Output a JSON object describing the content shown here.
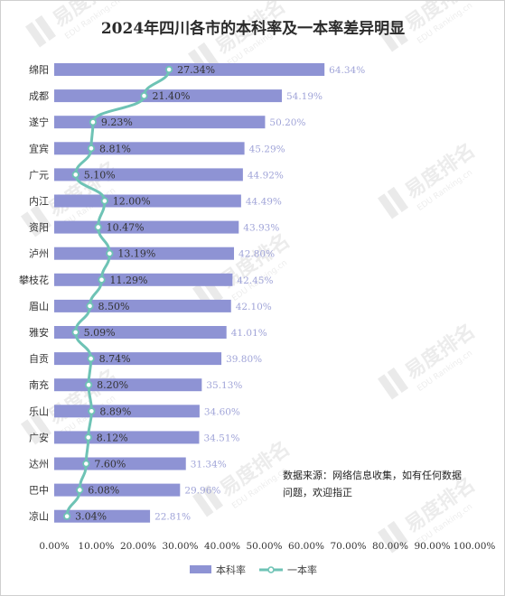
{
  "chart_data": {
    "type": "bar",
    "title": "2024年四川各市的本科率及一本率差异明显",
    "categories": [
      "绵阳",
      "成都",
      "遂宁",
      "宜宾",
      "广元",
      "内江",
      "资阳",
      "泸州",
      "攀枝花",
      "眉山",
      "雅安",
      "自贡",
      "南充",
      "乐山",
      "广安",
      "达州",
      "巴中",
      "凉山"
    ],
    "series": [
      {
        "name": "本科率",
        "type": "bar",
        "values": [
          64.34,
          54.19,
          50.2,
          45.29,
          44.92,
          44.49,
          43.93,
          42.8,
          42.45,
          42.1,
          41.01,
          39.8,
          35.13,
          34.6,
          34.51,
          31.34,
          29.96,
          22.81
        ],
        "labels": [
          "64.34%",
          "54.19%",
          "50.20%",
          "45.29%",
          "44.92%",
          "44.49%",
          "43.93%",
          "42.80%",
          "42.45%",
          "42.10%",
          "41.01%",
          "39.80%",
          "35.13%",
          "34.60%",
          "34.51%",
          "31.34%",
          "29.96%",
          "22.81%"
        ]
      },
      {
        "name": "一本率",
        "type": "line",
        "values": [
          27.34,
          21.4,
          9.23,
          8.81,
          5.1,
          12.0,
          10.47,
          13.19,
          11.29,
          8.5,
          5.09,
          8.74,
          8.2,
          8.89,
          8.12,
          7.6,
          6.08,
          3.04
        ],
        "labels": [
          "27.34%",
          "21.40%",
          "9.23%",
          "8.81%",
          "5.10%",
          "12.00%",
          "10.47%",
          "13.19%",
          "11.29%",
          "8.50%",
          "5.09%",
          "8.74%",
          "8.20%",
          "8.89%",
          "8.12%",
          "7.60%",
          "6.08%",
          "3.04%"
        ]
      }
    ],
    "xlim": [
      0,
      100
    ],
    "xticks": [
      "0.00%",
      "10.00%",
      "20.00%",
      "30.00%",
      "40.00%",
      "50.00%",
      "60.00%",
      "70.00%",
      "80.00%",
      "90.00%",
      "100.00%"
    ],
    "grid": false,
    "legend_position": "bottom",
    "colors": {
      "bar": "#8e93d4",
      "line": "#6ec3b5",
      "bar_label": "#a0a4d8",
      "marker_fill": "#ffffff"
    }
  },
  "note": {
    "line1": "数据来源：网络信息收集，如有任何数据",
    "line2": "问题，欢迎指正"
  },
  "watermark": "易度排名 EDU Ranking.cn"
}
